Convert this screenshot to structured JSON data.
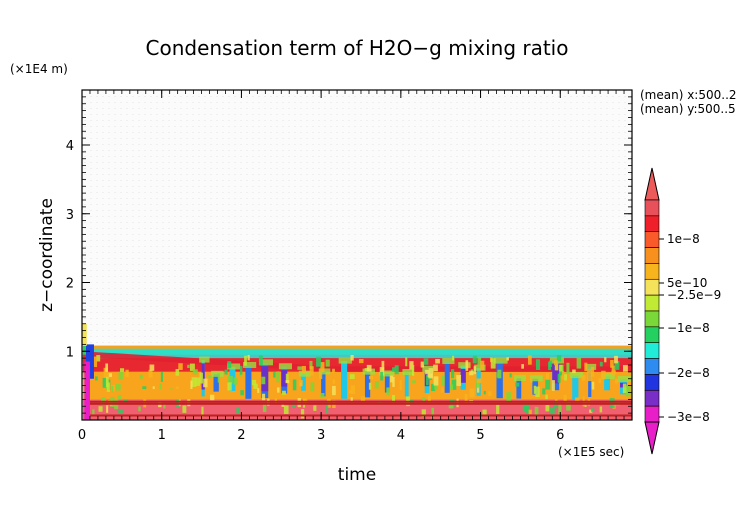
{
  "chart_data": {
    "type": "heatmap",
    "title": "Condensation term of H2O−g mixing ratio",
    "xlabel": "time",
    "ylabel": "z−coordinate",
    "x_unit": "(×1E5 sec)",
    "y_unit": "(×1E4 m)",
    "xlim": [
      0,
      6.9
    ],
    "ylim": [
      0,
      4.8
    ],
    "x_ticks": [
      "0",
      "1",
      "2",
      "3",
      "4",
      "5",
      "6"
    ],
    "y_ticks": [
      "1",
      "2",
      "3",
      "4"
    ],
    "annotations": [
      "(mean) x:500..2",
      "(mean) y:500..5"
    ],
    "colorbar": {
      "labels": [
        "1e−8",
        "5e−10",
        "−2.5e−9",
        "−1e−8",
        "−2e−8",
        "−3e−8"
      ],
      "colors": [
        "#e8505a",
        "#f0202a",
        "#fa5a2a",
        "#f8901e",
        "#f8b41c",
        "#f4e25a",
        "#c0ea34",
        "#7ad838",
        "#24d060",
        "#20ecd8",
        "#2e8cf0",
        "#2034e0",
        "#7a2ec8",
        "#e81ec8"
      ]
    },
    "field": {
      "band_top": 1.08,
      "bands": [
        {
          "z": [
            0.85,
            1.08
          ],
          "value": "−1e−8",
          "color": "#24d060"
        },
        {
          "z": [
            0.7,
            0.95
          ],
          "value": "1e−8",
          "color": "#e82830"
        },
        {
          "z": [
            0.3,
            0.7
          ],
          "value": "5e−10",
          "color": "#f8a41c"
        },
        {
          "z": [
            0.0,
            0.3
          ],
          "value": "1e−8",
          "color": "#f06070"
        }
      ]
    }
  }
}
